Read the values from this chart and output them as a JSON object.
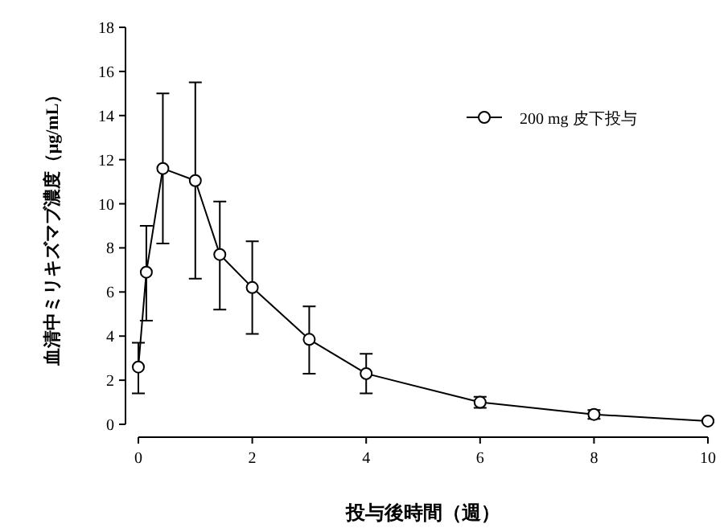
{
  "chart_data": {
    "type": "line",
    "xlabel": "投与後時間（週）",
    "ylabel": "血清中ミリキズマブ濃度（μg/mL）",
    "x": [
      0,
      0.14,
      0.43,
      1,
      1.43,
      2,
      3,
      4,
      6,
      8,
      10
    ],
    "series": [
      {
        "name": "200 mg  皮下投与",
        "color": "#000000",
        "values": [
          2.6,
          6.9,
          11.6,
          11.05,
          7.7,
          6.2,
          3.85,
          2.3,
          1.0,
          0.45,
          0.15
        ],
        "errors": [
          [
            1.4,
            3.7
          ],
          [
            4.7,
            9.0
          ],
          [
            8.2,
            15.0
          ],
          [
            6.6,
            15.5
          ],
          [
            5.2,
            10.1
          ],
          [
            4.1,
            8.3
          ],
          [
            2.3,
            5.35
          ],
          [
            1.4,
            3.2
          ],
          [
            0.75,
            1.25
          ],
          [
            0.25,
            0.65
          ],
          [
            0.1,
            0.2
          ]
        ]
      }
    ],
    "xlim": [
      0,
      10
    ],
    "ylim": [
      0,
      18
    ],
    "xticks": [
      0,
      2,
      4,
      6,
      8,
      10
    ],
    "yticks": [
      0,
      2,
      4,
      6,
      8,
      10,
      12,
      14,
      16,
      18
    ],
    "marker": "circle",
    "line_style": "solid",
    "legend": "top right",
    "grid": false
  }
}
